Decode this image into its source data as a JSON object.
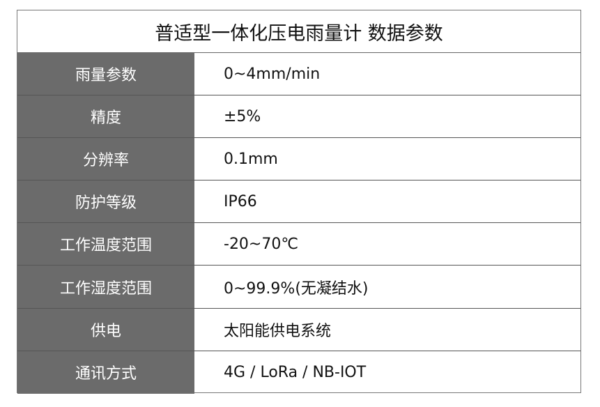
{
  "title": "普适型一体化压电雨量计 数据参数",
  "colors": {
    "label_bg": "#6b6b6b",
    "border": "#666666"
  },
  "rows": [
    {
      "label": "雨量参数",
      "value": "0~4mm/min"
    },
    {
      "label": "精度",
      "value": "±5%"
    },
    {
      "label": "分辨率",
      "value": "0.1mm"
    },
    {
      "label": "防护等级",
      "value": "IP66"
    },
    {
      "label": "工作温度范围",
      "value": "-20~70℃"
    },
    {
      "label": "工作湿度范围",
      "value": "0~99.9%(无凝结水)"
    },
    {
      "label": "供电",
      "value": "太阳能供电系统"
    },
    {
      "label": "通讯方式",
      "value": "4G / LoRa / NB-IOT"
    }
  ]
}
